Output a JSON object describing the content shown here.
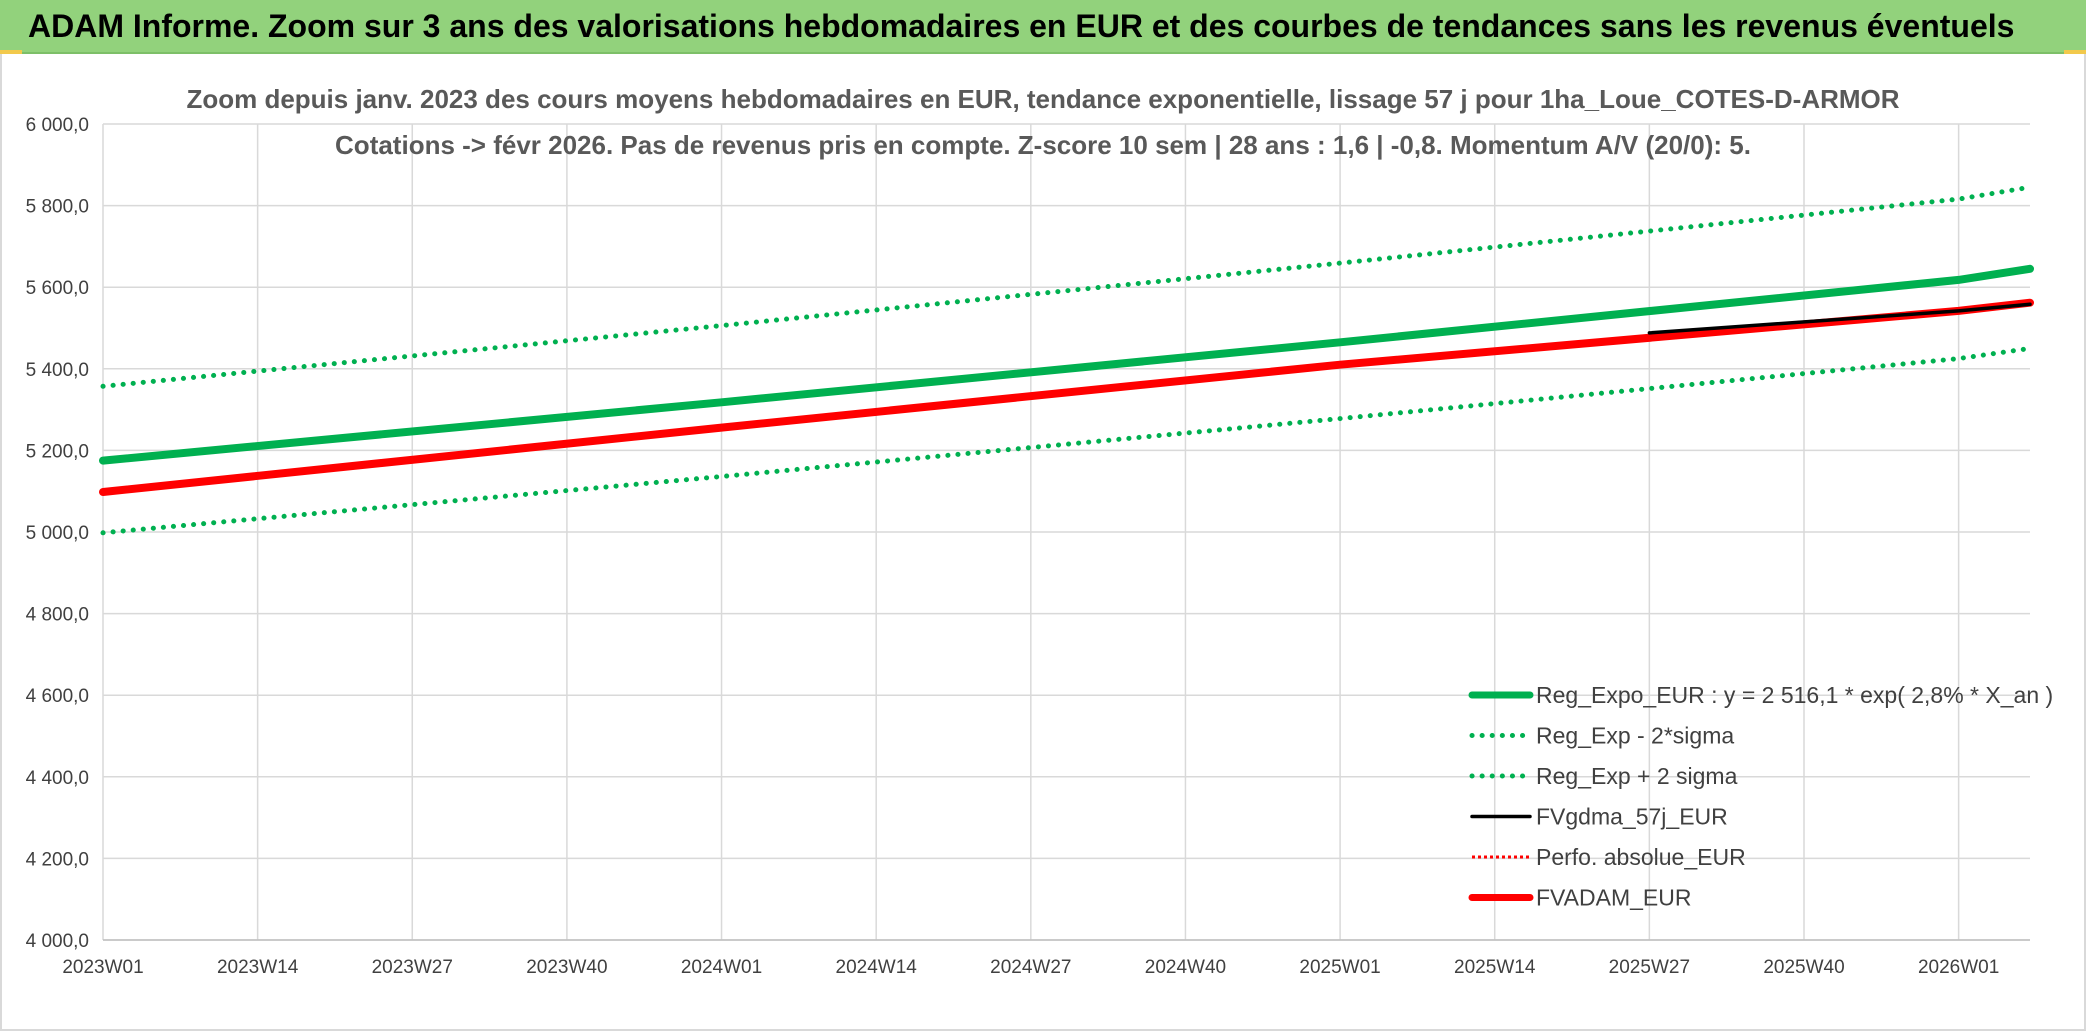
{
  "header": {
    "title": "ADAM Informe. Zoom sur 3 ans des valorisations hebdomadaires en EUR et des courbes de tendances sans les revenus éventuels"
  },
  "colors": {
    "header_bg": "#92d27c",
    "green": "#00b050",
    "red": "#ff0000",
    "black": "#000000",
    "grid": "#d9d9d9"
  },
  "chart_data": {
    "type": "line",
    "title": "Zoom depuis janv. 2023 des cours moyens hebdomadaires en EUR, tendance exponentielle, lissage 57 j pour 1ha_Loue_COTES-D-ARMOR",
    "subtitle": "Cotations -> févr 2026. Pas de revenus pris en compte. Z-score 10 sem | 28 ans : 1,6 | -0,8. Momentum A/V (20/0): 5.",
    "xlabel": "",
    "ylabel": "",
    "ylim": [
      4000,
      6000
    ],
    "y_ticks": [
      "4 000,0",
      "4 200,0",
      "4 400,0",
      "4 600,0",
      "4 800,0",
      "5 000,0",
      "5 200,0",
      "5 400,0",
      "5 600,0",
      "5 800,0",
      "6 000,0"
    ],
    "x_ticks": [
      "2023W01",
      "2023W14",
      "2023W27",
      "2023W40",
      "2024W01",
      "2024W14",
      "2024W27",
      "2024W40",
      "2025W01",
      "2025W14",
      "2025W27",
      "2025W40",
      "2026W01"
    ],
    "x_range_weeks": [
      "2023W01",
      "2026W07"
    ],
    "grid": true,
    "legend_position": "bottom-right",
    "series": [
      {
        "name": "Reg_Expo_EUR : y = 2 516,1 * exp( 2,8% *  X_an )",
        "color": "#00b050",
        "style": "solid-thick",
        "points": [
          [
            "2023W01",
            5175
          ],
          [
            "2024W01",
            5318
          ],
          [
            "2025W01",
            5465
          ],
          [
            "2026W01",
            5618
          ],
          [
            "2026W07",
            5645
          ]
        ]
      },
      {
        "name": "Reg_Exp - 2*sigma",
        "color": "#00b050",
        "style": "dotted",
        "points": [
          [
            "2023W01",
            4998
          ],
          [
            "2024W01",
            5136
          ],
          [
            "2025W01",
            5278
          ],
          [
            "2026W01",
            5425
          ],
          [
            "2026W07",
            5450
          ]
        ]
      },
      {
        "name": "Reg_Exp + 2 sigma",
        "color": "#00b050",
        "style": "dotted",
        "points": [
          [
            "2023W01",
            5357
          ],
          [
            "2024W01",
            5506
          ],
          [
            "2025W01",
            5659
          ],
          [
            "2026W01",
            5816
          ],
          [
            "2026W07",
            5845
          ]
        ]
      },
      {
        "name": "FVgdma_57j_EUR",
        "color": "#000000",
        "style": "solid",
        "points": [
          [
            "2025W27",
            5488
          ],
          [
            "2026W01",
            5542
          ],
          [
            "2026W07",
            5558
          ]
        ]
      },
      {
        "name": "Perfo. absolue_EUR",
        "color": "#ff0000",
        "style": "dotted-thin",
        "points": []
      },
      {
        "name": "FVADAM_EUR",
        "color": "#ff0000",
        "style": "solid-thick",
        "points": [
          [
            "2023W01",
            5098
          ],
          [
            "2024W01",
            5256
          ],
          [
            "2025W01",
            5410
          ],
          [
            "2026W01",
            5542
          ],
          [
            "2026W07",
            5562
          ]
        ]
      }
    ]
  }
}
